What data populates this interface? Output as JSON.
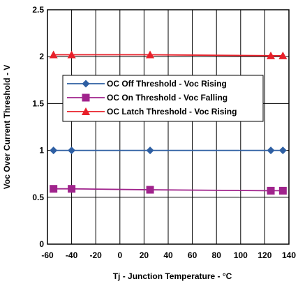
{
  "chart_data": {
    "type": "line",
    "xlabel": "Tj - Junction Temperature -  °C",
    "ylabel": "Voc Over Current Threshold - V",
    "xlim": [
      -60,
      140
    ],
    "ylim": [
      0,
      2.5
    ],
    "xticks": [
      "-60",
      "-40",
      "-20",
      "0",
      "20",
      "40",
      "60",
      "80",
      "100",
      "120",
      "140"
    ],
    "yticks": [
      "0",
      "0.5",
      "1",
      "1.5",
      "2",
      "2.5"
    ],
    "grid": true,
    "legend_position": "center",
    "series": [
      {
        "name": "OC Off Threshold - Voc Rising",
        "color": "#2e5fa3",
        "marker": "diamond",
        "x": [
          -55,
          -40,
          25,
          125,
          135
        ],
        "y": [
          1.0,
          1.0,
          1.0,
          1.0,
          1.0
        ]
      },
      {
        "name": "OC On Threshold - Voc Falling",
        "color": "#a0238c",
        "marker": "square",
        "x": [
          -55,
          -40,
          25,
          125,
          135
        ],
        "y": [
          0.59,
          0.59,
          0.58,
          0.57,
          0.57
        ]
      },
      {
        "name": "OC Latch Threshold - Voc Rising",
        "color": "#e8202a",
        "marker": "triangle",
        "x": [
          -55,
          -40,
          25,
          125,
          135
        ],
        "y": [
          2.02,
          2.02,
          2.02,
          2.01,
          2.01
        ]
      }
    ]
  }
}
